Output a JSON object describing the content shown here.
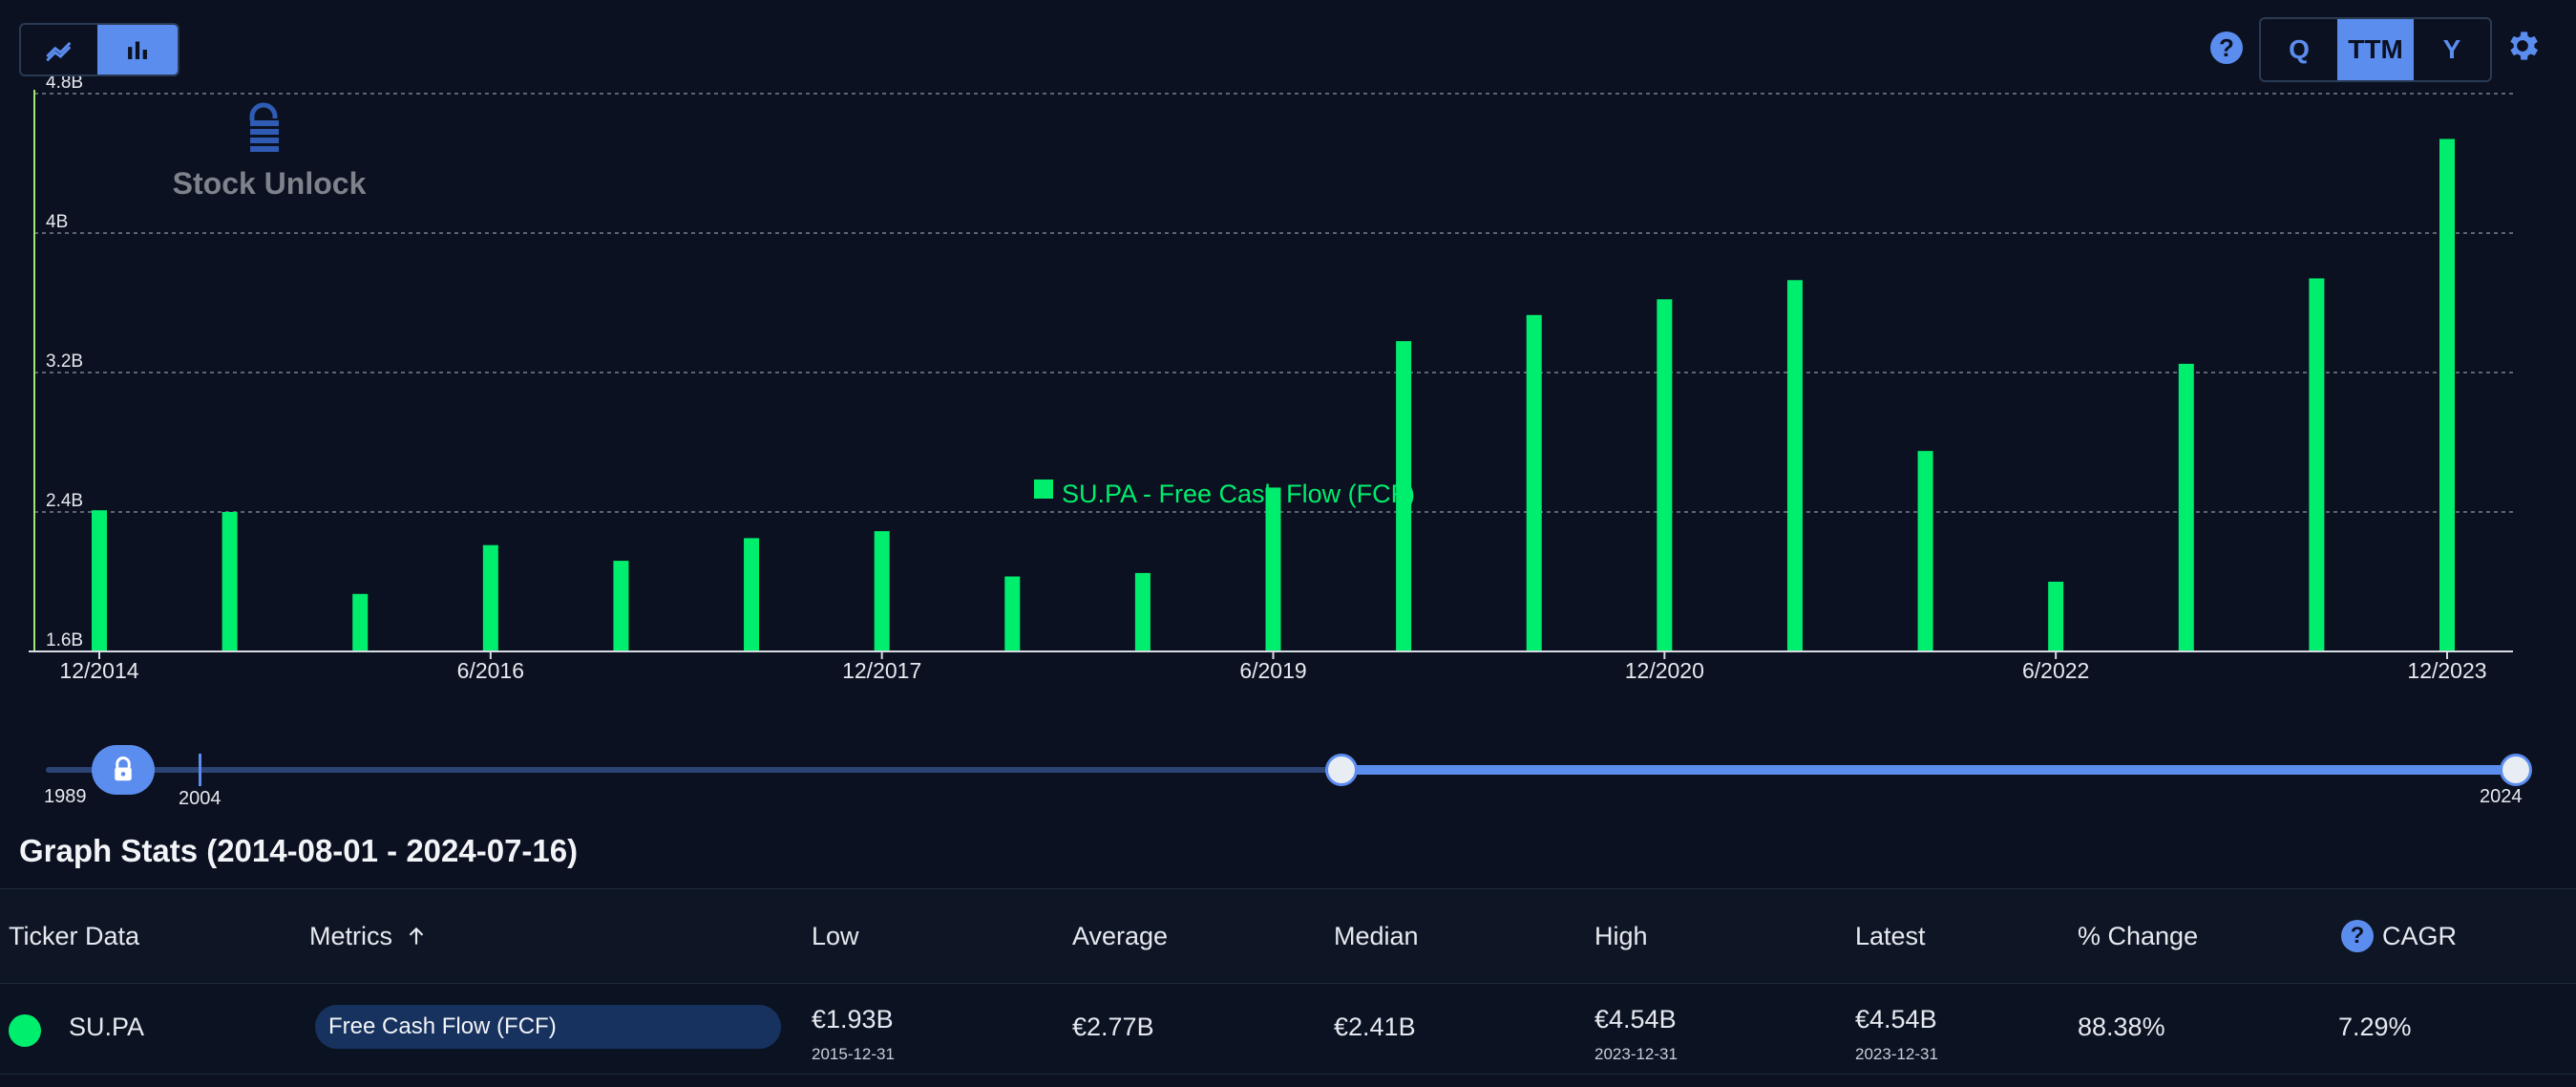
{
  "toolbar": {
    "chart_types": [
      "line-chart-icon",
      "bar-chart-icon"
    ],
    "active_chart_type": "bar-chart-icon",
    "periods": [
      "Q",
      "TTM",
      "Y"
    ],
    "active_period": "TTM",
    "help_label": "?"
  },
  "watermark": {
    "text": "Stock Unlock"
  },
  "colors": {
    "accent": "#5b8def",
    "bar": "#00ee6e",
    "background": "#0b1120",
    "grid": "#8f97a6"
  },
  "chart_data": {
    "type": "bar",
    "title": "",
    "xlabel": "",
    "ylabel": "",
    "ylim": [
      1.6,
      4.8
    ],
    "y_ticks": [
      "1.6B",
      "2.4B",
      "3.2B",
      "4B",
      "4.8B"
    ],
    "y_tick_values": [
      1.6,
      2.4,
      3.2,
      4.0,
      4.8
    ],
    "x_tick_labels": [
      "12/2014",
      "6/2016",
      "12/2017",
      "6/2019",
      "12/2020",
      "6/2022",
      "12/2023"
    ],
    "categories": [
      "12/2014",
      "6/2015",
      "12/2015",
      "6/2016",
      "12/2016",
      "6/2017",
      "12/2017",
      "6/2018",
      "12/2018",
      "6/2019",
      "12/2019",
      "6/2020",
      "12/2020",
      "6/2021",
      "12/2021",
      "6/2022",
      "12/2022",
      "6/2023",
      "12/2023"
    ],
    "series": [
      {
        "name": "SU.PA - Free Cash Flow (FCF)",
        "values": [
          2.41,
          2.4,
          1.93,
          2.21,
          2.12,
          2.25,
          2.29,
          2.03,
          2.05,
          2.54,
          3.38,
          3.53,
          3.62,
          3.73,
          2.75,
          2.0,
          3.25,
          3.74,
          4.54
        ]
      }
    ],
    "legend": "bottom-center",
    "grid": true
  },
  "slider": {
    "min_label": "1989",
    "lock_label": "2004",
    "max_label": "2024"
  },
  "stats": {
    "title": "Graph Stats (2014-08-01 - 2024-07-16)",
    "headers": {
      "ticker": "Ticker Data",
      "metrics": "Metrics",
      "low": "Low",
      "average": "Average",
      "median": "Median",
      "high": "High",
      "latest": "Latest",
      "change": "% Change",
      "cagr": "CAGR"
    },
    "rows": [
      {
        "ticker": "SU.PA",
        "dot_color": "#00ee6e",
        "metric": "Free Cash Flow (FCF)",
        "low": "€1.93B",
        "low_date": "2015-12-31",
        "average": "€2.77B",
        "median": "€2.41B",
        "high": "€4.54B",
        "high_date": "2023-12-31",
        "latest": "€4.54B",
        "latest_date": "2023-12-31",
        "change": "88.38%",
        "cagr": "7.29%"
      }
    ]
  }
}
